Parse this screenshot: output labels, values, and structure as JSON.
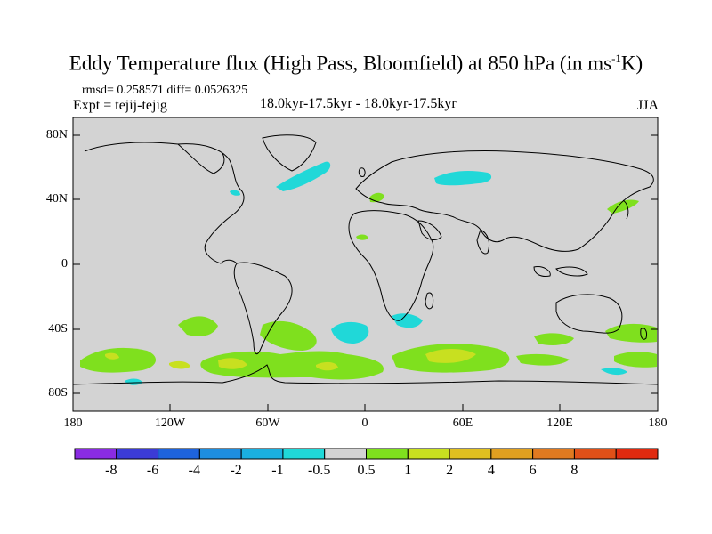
{
  "title": "Eddy Temperature flux (High Pass, Bloomfield) at 850 hPa (in ms",
  "title_exp": "-1",
  "title_end": "K)",
  "stats": "rmsd= 0.258571 diff= 0.0526325",
  "expt": "Expt = tejij-tejig",
  "period": "18.0kyr-17.5kyr - 18.0kyr-17.5kyr",
  "season": "JJA",
  "lat_labels": [
    "80N",
    "40N",
    "0",
    "40S",
    "80S"
  ],
  "lon_labels": [
    "180",
    "120W",
    "60W",
    "0",
    "60E",
    "120E",
    "180"
  ],
  "colorbar": {
    "colors": [
      "#8a2be2",
      "#3b3bd6",
      "#1e63dc",
      "#1e8ee0",
      "#1ab0e0",
      "#20d8d8",
      "#d3d3d3",
      "#7fe01e",
      "#c8e020",
      "#e0c020",
      "#e0a020",
      "#e07a20",
      "#e05018",
      "#e02a10"
    ],
    "labels": [
      "-8",
      "-6",
      "-4",
      "-2",
      "-1",
      "-0.5",
      "0.5",
      "1",
      "2",
      "4",
      "6",
      "8"
    ]
  }
}
